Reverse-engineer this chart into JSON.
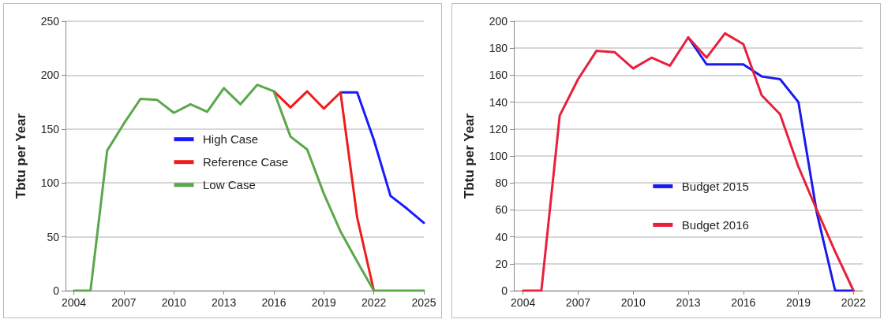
{
  "chart_data": [
    {
      "type": "line",
      "ylabel": "Tbtu per Year",
      "x": [
        2004,
        2005,
        2006,
        2007,
        2008,
        2009,
        2010,
        2011,
        2012,
        2013,
        2014,
        2015,
        2016,
        2017,
        2018,
        2019,
        2020,
        2021,
        2022,
        2023,
        2024,
        2025
      ],
      "series": [
        {
          "name": "High Case",
          "color": "#1a1aff",
          "values": [
            null,
            null,
            null,
            null,
            null,
            null,
            null,
            null,
            null,
            null,
            null,
            null,
            null,
            null,
            null,
            null,
            184,
            184,
            140,
            88,
            76,
            63
          ]
        },
        {
          "name": "Reference Case",
          "color": "#f01c1c",
          "values": [
            null,
            null,
            null,
            null,
            null,
            null,
            null,
            null,
            null,
            null,
            null,
            null,
            185,
            170,
            185,
            169,
            184,
            68,
            0,
            null,
            null,
            null
          ]
        },
        {
          "name": "Low Case",
          "color": "#5aa84a",
          "values": [
            0,
            0,
            130,
            155,
            178,
            177,
            165,
            173,
            166,
            188,
            173,
            191,
            185,
            143,
            131,
            90,
            55,
            27,
            0,
            0,
            0,
            0
          ]
        }
      ],
      "xlim": [
        2003.5,
        2025
      ],
      "xticks": [
        2004,
        2007,
        2010,
        2013,
        2016,
        2019,
        2022,
        2025
      ],
      "ylim": [
        0,
        250
      ],
      "yticks": [
        0,
        50,
        100,
        150,
        200,
        250
      ],
      "grid": "y",
      "legend": "center",
      "marker": "none",
      "line_style": "solid"
    },
    {
      "type": "line",
      "ylabel": "Tbtu per Year",
      "x": [
        2004,
        2005,
        2006,
        2007,
        2008,
        2009,
        2010,
        2011,
        2012,
        2013,
        2014,
        2015,
        2016,
        2017,
        2018,
        2019,
        2020,
        2021,
        2022
      ],
      "series": [
        {
          "name": "Budget 2015",
          "color": "#1a1aee",
          "values": [
            null,
            null,
            null,
            null,
            null,
            null,
            null,
            null,
            null,
            188,
            168,
            168,
            168,
            159,
            157,
            140,
            58,
            0,
            0
          ]
        },
        {
          "name": "Budget 2016",
          "color": "#e8203c",
          "values": [
            0,
            0,
            130,
            157,
            178,
            177,
            165,
            173,
            167,
            188,
            173,
            191,
            183,
            145,
            131,
            92,
            60,
            29,
            0
          ]
        }
      ],
      "xlim": [
        2003.5,
        2022.5
      ],
      "xticks": [
        2004,
        2007,
        2010,
        2013,
        2016,
        2019,
        2022
      ],
      "ylim": [
        0,
        200
      ],
      "yticks": [
        0,
        20,
        40,
        60,
        80,
        100,
        120,
        140,
        160,
        180,
        200
      ],
      "grid": "y",
      "legend": "lower center",
      "marker": "none",
      "line_style": "solid"
    }
  ]
}
